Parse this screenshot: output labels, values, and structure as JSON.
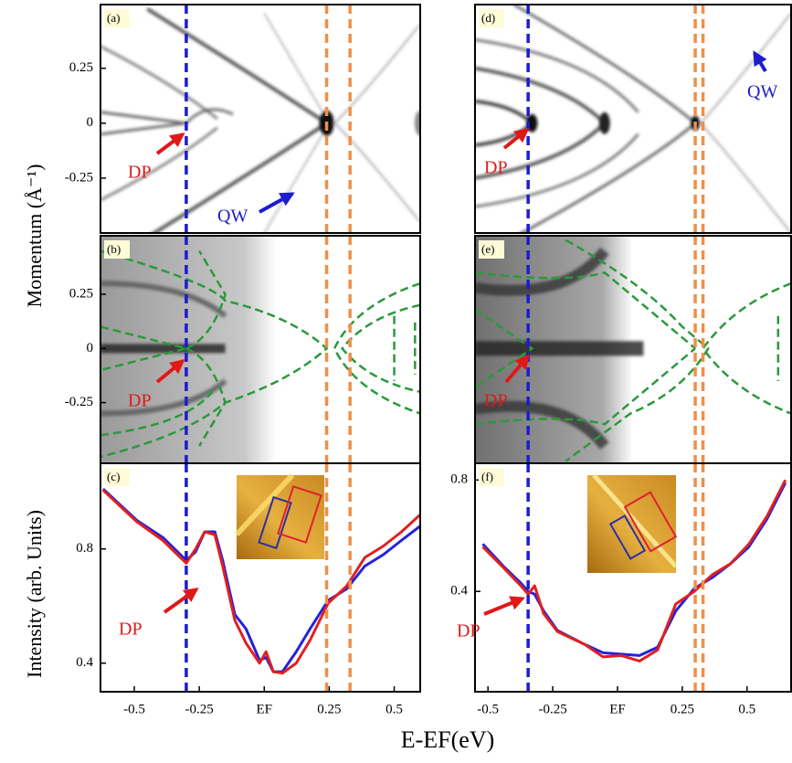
{
  "figure": {
    "ylabel_momentum": "Momentum (Å⁻¹)",
    "ylabel_intensity": "Intensity (arb. Units)",
    "xlabel": "E-EF(eV)"
  },
  "chart_data": [
    {
      "type": "image",
      "panel_label": "(a)",
      "xlim": [
        -0.63,
        0.6
      ],
      "ylim": [
        -0.5,
        0.54
      ],
      "yticks": [
        0.25,
        0,
        -0.25
      ],
      "vlines": [
        {
          "x": -0.3,
          "color": "#1c1cd0"
        },
        {
          "x": 0.24,
          "color": "#ef8f4a"
        },
        {
          "x": 0.33,
          "color": "#ef8f4a"
        }
      ],
      "annotations": [
        {
          "text": "DP"
        },
        {
          "text": "QW"
        }
      ]
    },
    {
      "type": "image",
      "panel_label": "(b)",
      "xlim": [
        -0.63,
        0.6
      ],
      "ylim": [
        -0.53,
        0.52
      ],
      "yticks": [
        0.25,
        0,
        -0.25
      ],
      "vlines": [
        {
          "x": -0.3,
          "color": "#1c1cd0"
        },
        {
          "x": 0.24,
          "color": "#ef8f4a"
        },
        {
          "x": 0.33,
          "color": "#ef8f4a"
        }
      ],
      "annotations": [
        {
          "text": "DP"
        }
      ]
    },
    {
      "type": "line",
      "panel_label": "(c)",
      "xlim": [
        -0.63,
        0.6
      ],
      "ylim": [
        0.3,
        1.1
      ],
      "yticks": [
        0.8,
        0.4
      ],
      "xticks": [
        -0.5,
        -0.25,
        {
          "value": 0,
          "label": "EF"
        },
        0.25,
        0.5
      ],
      "x": [
        -0.62,
        -0.49,
        -0.39,
        -0.3,
        -0.264,
        -0.229,
        -0.19,
        -0.16,
        -0.113,
        -0.07,
        -0.018,
        0.007,
        0.035,
        0.07,
        0.123,
        0.176,
        0.246,
        0.317,
        0.387,
        0.458,
        0.528,
        0.6
      ],
      "series": [
        {
          "color": "#2323d8",
          "values": [
            1.01,
            0.9,
            0.84,
            0.76,
            0.79,
            0.86,
            0.86,
            0.76,
            0.57,
            0.52,
            0.41,
            0.42,
            0.37,
            0.37,
            0.44,
            0.52,
            0.62,
            0.66,
            0.74,
            0.78,
            0.83,
            0.88
          ]
        },
        {
          "color": "#e02020",
          "values": [
            1.006,
            0.895,
            0.83,
            0.75,
            0.8,
            0.86,
            0.85,
            0.74,
            0.55,
            0.47,
            0.4,
            0.44,
            0.37,
            0.365,
            0.4,
            0.48,
            0.61,
            0.67,
            0.77,
            0.81,
            0.86,
            0.92
          ]
        }
      ],
      "vlines": [
        {
          "x": -0.3,
          "color": "#1c1cd0"
        },
        {
          "x": 0.24,
          "color": "#ef8f4a"
        },
        {
          "x": 0.33,
          "color": "#ef8f4a"
        }
      ],
      "annotations": [
        {
          "text": "DP"
        }
      ]
    },
    {
      "type": "image",
      "panel_label": "(d)",
      "xlim": [
        -0.55,
        0.67
      ],
      "ylim": [
        -0.5,
        0.54
      ],
      "vlines": [
        {
          "x": -0.345,
          "color": "#1c1cd0"
        },
        {
          "x": 0.3,
          "color": "#ef8f4a"
        },
        {
          "x": 0.33,
          "color": "#ef8f4a"
        }
      ],
      "annotations": [
        {
          "text": "DP"
        },
        {
          "text": "QW"
        }
      ]
    },
    {
      "type": "image",
      "panel_label": "(e)",
      "xlim": [
        -0.55,
        0.67
      ],
      "ylim": [
        -0.53,
        0.52
      ],
      "vlines": [
        {
          "x": -0.345,
          "color": "#1c1cd0"
        },
        {
          "x": 0.3,
          "color": "#ef8f4a"
        },
        {
          "x": 0.33,
          "color": "#ef8f4a"
        }
      ],
      "annotations": [
        {
          "text": "DP"
        }
      ]
    },
    {
      "type": "line",
      "panel_label": "(f)",
      "xlim": [
        -0.55,
        0.67
      ],
      "ylim": [
        0.04,
        0.86
      ],
      "yticks": [
        0.8,
        0.4
      ],
      "xticks": [
        -0.5,
        -0.25,
        {
          "value": 0,
          "label": "EF"
        },
        0.25,
        0.5
      ],
      "x": [
        -0.52,
        -0.44,
        -0.373,
        -0.345,
        -0.32,
        -0.285,
        -0.232,
        -0.127,
        -0.056,
        0.014,
        0.085,
        0.155,
        0.225,
        0.296,
        0.366,
        0.437,
        0.507,
        0.577,
        0.648
      ],
      "series": [
        {
          "color": "#2323d8",
          "values": [
            0.57,
            0.49,
            0.43,
            0.4,
            0.39,
            0.33,
            0.26,
            0.21,
            0.18,
            0.175,
            0.17,
            0.2,
            0.33,
            0.41,
            0.45,
            0.5,
            0.56,
            0.66,
            0.79
          ]
        },
        {
          "color": "#e02020",
          "values": [
            0.56,
            0.485,
            0.42,
            0.39,
            0.42,
            0.32,
            0.256,
            0.21,
            0.165,
            0.17,
            0.15,
            0.19,
            0.355,
            0.4,
            0.46,
            0.5,
            0.57,
            0.67,
            0.8
          ]
        }
      ],
      "vlines": [
        {
          "x": -0.345,
          "color": "#1c1cd0"
        },
        {
          "x": 0.3,
          "color": "#ef8f4a"
        },
        {
          "x": 0.33,
          "color": "#ef8f4a"
        }
      ],
      "annotations": [
        {
          "text": "DP"
        }
      ]
    }
  ]
}
